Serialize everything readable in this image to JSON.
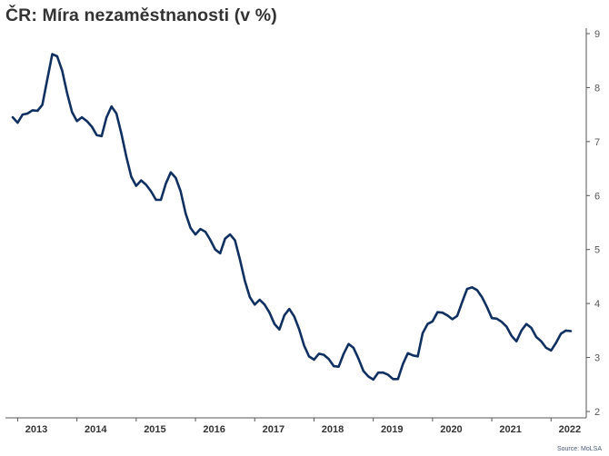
{
  "title": "ČR: Míra nezaměstnanosti (v %)",
  "source": "Source: MoLSA",
  "colors": {
    "line": "#0f3060",
    "axis": "#555555",
    "grid": "#eeeeee"
  },
  "chart_data": {
    "type": "line",
    "title": "ČR: Míra nezaměstnanosti (v %)",
    "xlabel": "",
    "ylabel": "",
    "ylim": [
      2,
      9
    ],
    "yticks": [
      2,
      3,
      4,
      5,
      6,
      7,
      8,
      9
    ],
    "x_tick_labels": [
      "2013",
      "2014",
      "2015",
      "2016",
      "2017",
      "2018",
      "2019",
      "2020",
      "2021",
      "2022"
    ],
    "y_axis_position": "right",
    "grid": false,
    "series": [
      {
        "x": [
          "2012-12",
          "2013-01",
          "2013-02",
          "2013-03",
          "2013-04",
          "2013-05",
          "2013-06",
          "2013-07",
          "2013-08",
          "2013-09",
          "2013-10",
          "2013-11",
          "2013-12",
          "2014-01",
          "2014-02",
          "2014-03",
          "2014-04",
          "2014-05",
          "2014-06",
          "2014-07",
          "2014-08",
          "2014-09",
          "2014-10",
          "2014-11",
          "2014-12",
          "2015-01",
          "2015-02",
          "2015-03",
          "2015-04",
          "2015-05",
          "2015-06",
          "2015-07",
          "2015-08",
          "2015-09",
          "2015-10",
          "2015-11",
          "2015-12",
          "2016-01",
          "2016-02",
          "2016-03",
          "2016-04",
          "2016-05",
          "2016-06",
          "2016-07",
          "2016-08",
          "2016-09",
          "2016-10",
          "2016-11",
          "2016-12",
          "2017-01",
          "2017-02",
          "2017-03",
          "2017-04",
          "2017-05",
          "2017-06",
          "2017-07",
          "2017-08",
          "2017-09",
          "2017-10",
          "2017-11",
          "2017-12",
          "2018-01",
          "2018-02",
          "2018-03",
          "2018-04",
          "2018-05",
          "2018-06",
          "2018-07",
          "2018-08",
          "2018-09",
          "2018-10",
          "2018-11",
          "2018-12",
          "2019-01",
          "2019-02",
          "2019-03",
          "2019-04",
          "2019-05",
          "2019-06",
          "2019-07",
          "2019-08",
          "2019-09",
          "2019-10",
          "2019-11",
          "2019-12",
          "2020-01",
          "2020-02",
          "2020-03",
          "2020-04",
          "2020-05",
          "2020-06",
          "2020-07",
          "2020-08",
          "2020-09",
          "2020-10",
          "2020-11",
          "2020-12",
          "2021-01",
          "2021-02",
          "2021-03",
          "2021-04",
          "2021-05",
          "2021-06",
          "2021-07",
          "2021-08",
          "2021-09",
          "2021-10",
          "2021-11",
          "2021-12",
          "2022-01",
          "2022-02",
          "2022-03",
          "2022-04",
          "2022-05"
        ],
        "values": [
          7.45,
          7.35,
          7.5,
          7.52,
          7.58,
          7.57,
          7.68,
          8.15,
          8.62,
          8.58,
          8.32,
          7.9,
          7.55,
          7.38,
          7.45,
          7.38,
          7.28,
          7.12,
          7.1,
          7.45,
          7.65,
          7.52,
          7.15,
          6.72,
          6.35,
          6.18,
          6.28,
          6.2,
          6.08,
          5.92,
          5.92,
          6.22,
          6.43,
          6.33,
          6.08,
          5.67,
          5.4,
          5.28,
          5.38,
          5.33,
          5.18,
          5.0,
          4.93,
          5.2,
          5.28,
          5.17,
          4.82,
          4.42,
          4.12,
          3.98,
          4.07,
          3.98,
          3.83,
          3.62,
          3.52,
          3.78,
          3.9,
          3.76,
          3.52,
          3.22,
          3.02,
          2.96,
          3.07,
          3.05,
          2.97,
          2.84,
          2.83,
          3.07,
          3.25,
          3.18,
          2.98,
          2.75,
          2.65,
          2.59,
          2.72,
          2.72,
          2.68,
          2.6,
          2.6,
          2.88,
          3.08,
          3.04,
          3.02,
          3.45,
          3.62,
          3.67,
          3.84,
          3.83,
          3.78,
          3.71,
          3.77,
          4.03,
          4.27,
          4.3,
          4.25,
          4.12,
          3.94,
          3.73,
          3.72,
          3.66,
          3.57,
          3.4,
          3.3,
          3.5,
          3.62,
          3.55,
          3.38,
          3.3,
          3.18,
          3.13,
          3.27,
          3.44,
          3.5,
          3.49
        ]
      }
    ]
  }
}
